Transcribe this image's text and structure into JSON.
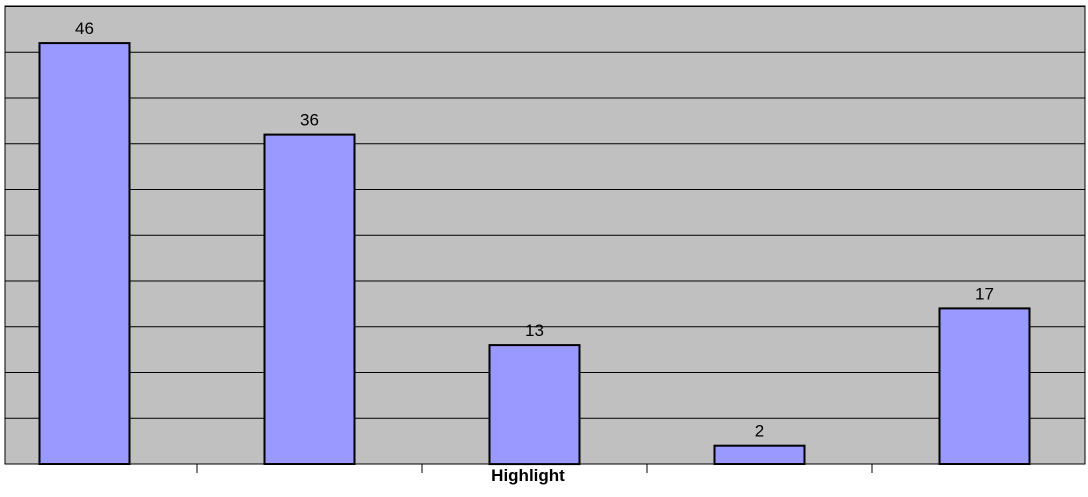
{
  "chart_data": {
    "type": "bar",
    "categories": [
      "",
      "",
      "",
      "",
      ""
    ],
    "values": [
      46,
      36,
      13,
      2,
      17
    ],
    "title": "",
    "xlabel": "Highlight",
    "ylabel": "",
    "ylim": [
      0,
      50
    ],
    "grid": true,
    "legend": "none"
  },
  "colors": {
    "plot_background": "#c0c0c0",
    "bar_fill": "#9999ff",
    "bar_stroke": "#000000",
    "gridline": "#000000"
  }
}
